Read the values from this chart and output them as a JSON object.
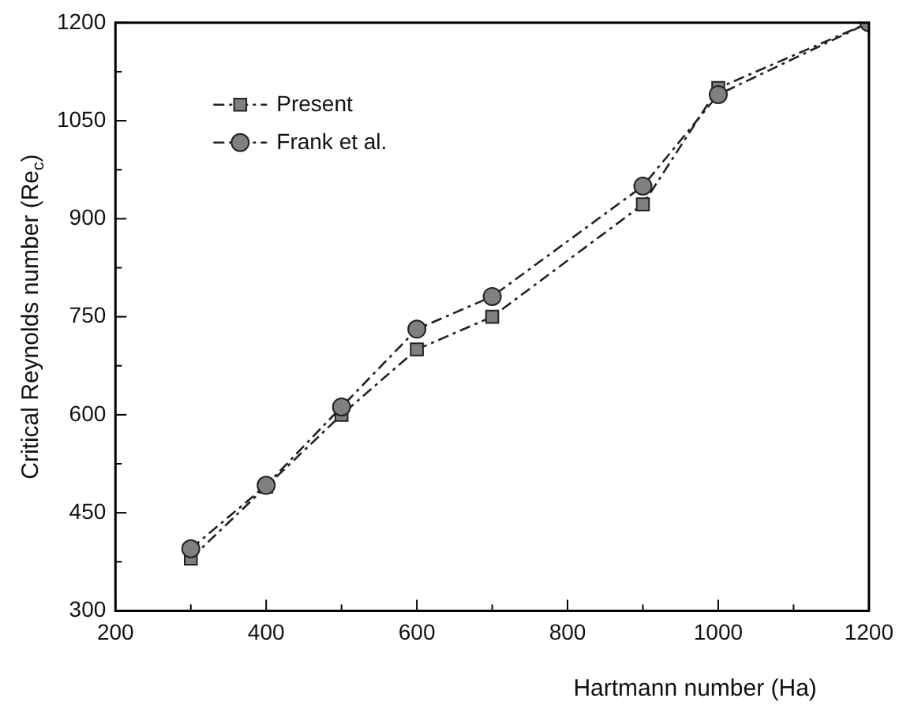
{
  "chart_data": {
    "type": "line",
    "xlabel": "Hartmann number (Ha)",
    "ylabel": "Critical Reynolds number (Re$_{c}$)",
    "x": [
      300,
      400,
      500,
      600,
      700,
      900,
      1000,
      1200
    ],
    "series": [
      {
        "name": "Present",
        "color": "#808080",
        "marker": "square",
        "line_style": "dashed",
        "values": [
          380,
          490,
          600,
          700,
          750,
          922,
          1100,
          1200
        ]
      },
      {
        "name": "Frank et al.",
        "color": "#808080",
        "marker": "circle",
        "line_style": "dashed",
        "values": [
          395,
          492,
          612,
          731,
          781,
          950,
          1090,
          1200
        ]
      }
    ],
    "xlim": [
      200,
      1200
    ],
    "xticks": [
      200,
      {
        "value": 300,
        "label": null
      },
      400,
      {
        "value": 500,
        "label": null
      },
      600,
      {
        "value": 700,
        "label": null
      },
      800,
      {
        "value": 900,
        "label": null
      },
      1000,
      {
        "value": 1100,
        "label": null
      },
      1200
    ],
    "ylim": [
      300,
      1200
    ],
    "yticks": [
      300,
      {
        "value": 375,
        "label": null
      },
      450,
      {
        "value": 525,
        "label": null
      },
      600,
      {
        "value": 675,
        "label": null
      },
      750,
      {
        "value": 825,
        "label": null
      },
      900,
      {
        "value": 975,
        "label": null
      },
      1050,
      {
        "value": 1125,
        "label": null
      },
      1200
    ],
    "grid": false,
    "legend": "top left"
  }
}
